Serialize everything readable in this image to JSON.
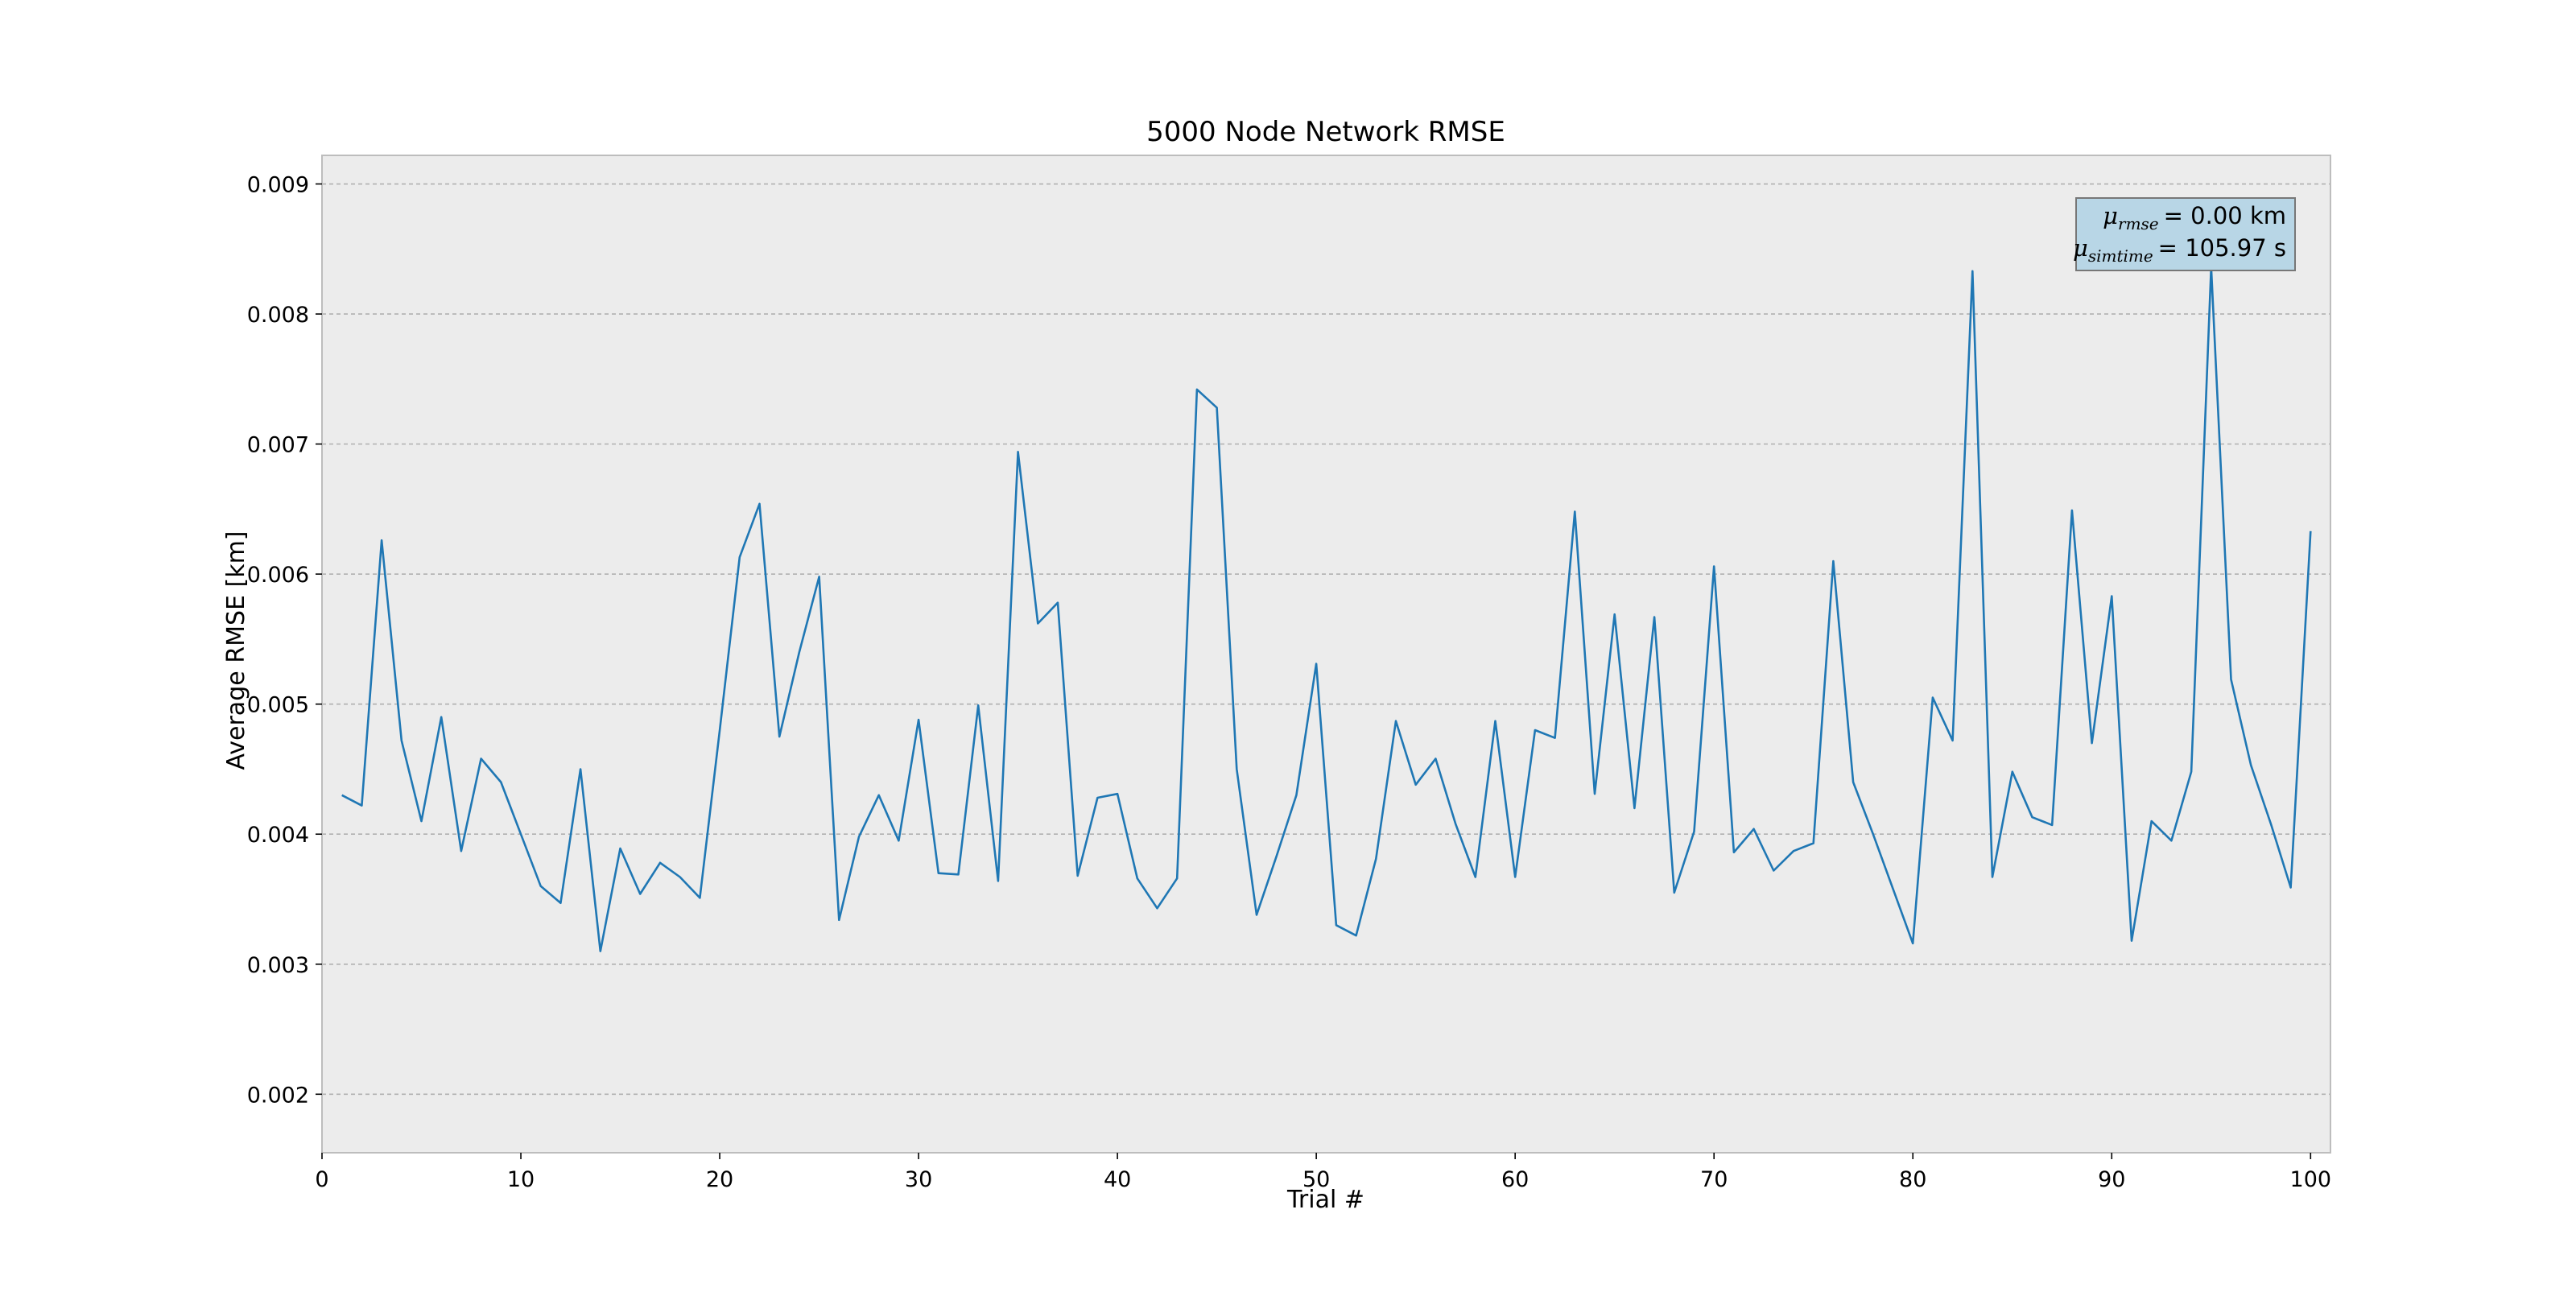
{
  "chart_data": {
    "type": "line",
    "title": "5000 Node Network RMSE",
    "xlabel": "Trial #",
    "ylabel": "Average RMSE [km]",
    "xlim": [
      0,
      101
    ],
    "ylim": [
      0.00155,
      0.00922
    ],
    "xticks": [
      0,
      10,
      20,
      30,
      40,
      50,
      60,
      70,
      80,
      90,
      100
    ],
    "yticks": [
      0.002,
      0.003,
      0.004,
      0.005,
      0.006,
      0.007,
      0.008,
      0.009
    ],
    "ytick_labels": [
      "0.002",
      "0.003",
      "0.004",
      "0.005",
      "0.006",
      "0.007",
      "0.008",
      "0.009"
    ],
    "grid": "y-dashed",
    "background": "#ececec",
    "series": [
      {
        "color": "#1f77b4",
        "x": [
          1,
          2,
          3,
          4,
          5,
          6,
          7,
          8,
          9,
          10,
          11,
          12,
          13,
          14,
          15,
          16,
          17,
          18,
          19,
          20,
          21,
          22,
          23,
          24,
          25,
          26,
          27,
          28,
          29,
          30,
          31,
          32,
          33,
          34,
          35,
          36,
          37,
          38,
          39,
          40,
          41,
          42,
          43,
          44,
          45,
          46,
          47,
          48,
          49,
          50,
          51,
          52,
          53,
          54,
          55,
          56,
          57,
          58,
          59,
          60,
          61,
          62,
          63,
          64,
          65,
          66,
          67,
          68,
          69,
          70,
          71,
          72,
          73,
          74,
          75,
          76,
          77,
          78,
          79,
          80,
          81,
          82,
          83,
          84,
          85,
          86,
          87,
          88,
          89,
          90,
          91,
          92,
          93,
          94,
          95,
          96,
          97,
          98,
          99,
          100
        ],
        "values": [
          0.0043,
          0.00422,
          0.00626,
          0.00472,
          0.0041,
          0.0049,
          0.00387,
          0.00458,
          0.0044,
          0.004,
          0.0036,
          0.00347,
          0.0045,
          0.0031,
          0.00389,
          0.00354,
          0.00378,
          0.00367,
          0.00351,
          0.0048,
          0.00613,
          0.00654,
          0.00475,
          0.0054,
          0.00598,
          0.00334,
          0.00398,
          0.0043,
          0.00395,
          0.00488,
          0.0037,
          0.00369,
          0.00499,
          0.00364,
          0.00694,
          0.00562,
          0.00578,
          0.00368,
          0.00428,
          0.00431,
          0.00366,
          0.00343,
          0.00366,
          0.00742,
          0.00728,
          0.0045,
          0.00338,
          0.00383,
          0.0043,
          0.00531,
          0.0033,
          0.00322,
          0.00381,
          0.00487,
          0.00438,
          0.00458,
          0.00408,
          0.00367,
          0.00487,
          0.00367,
          0.0048,
          0.00474,
          0.00648,
          0.00431,
          0.00569,
          0.0042,
          0.00567,
          0.00355,
          0.00402,
          0.00606,
          0.00386,
          0.00404,
          0.00372,
          0.00387,
          0.00393,
          0.0061,
          0.0044,
          0.004,
          0.00358,
          0.00316,
          0.00505,
          0.00472,
          0.00833,
          0.00367,
          0.00448,
          0.00413,
          0.00407,
          0.00649,
          0.0047,
          0.00583,
          0.00318,
          0.0041,
          0.00395,
          0.00448,
          0.00836,
          0.00519,
          0.00453,
          0.00408,
          0.00359,
          0.00633
        ]
      }
    ],
    "annotation": {
      "line1_symbol": "μ",
      "line1_sub": "rmse",
      "line1_value": "= 0.00 km",
      "line2_symbol": "μ",
      "line2_sub": "simtime",
      "line2_value": "= 105.97 s",
      "box_color": "#b8d6e6",
      "placement": "top-right"
    }
  }
}
